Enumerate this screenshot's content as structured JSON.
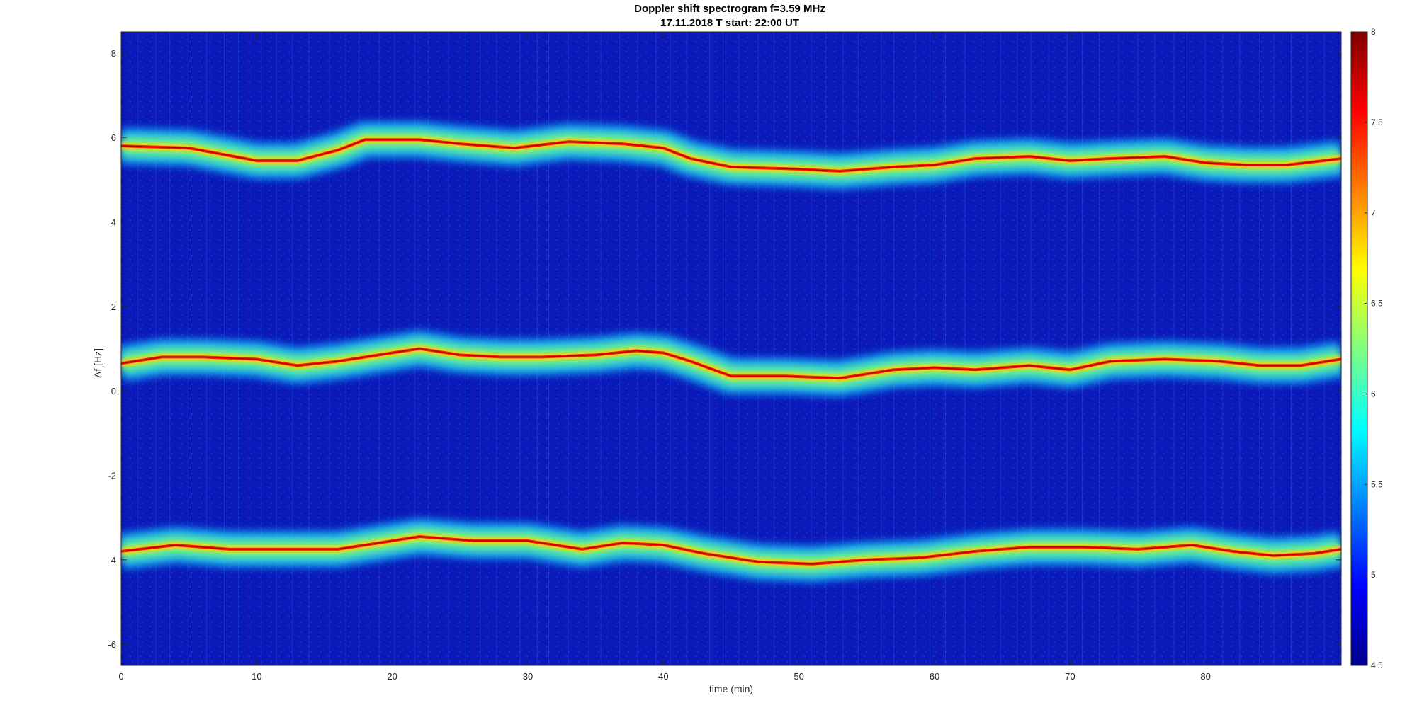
{
  "chart_data": {
    "type": "heatmap",
    "title": "Doppler shift spectrogram f=3.59 MHz",
    "subtitle": "17.11.2018   T start: 22:00 UT",
    "xlabel": "time (min)",
    "ylabel": "Δf [Hz]",
    "xlim": [
      0,
      90
    ],
    "ylim": [
      -6.5,
      8.5
    ],
    "xticks": [
      0,
      10,
      20,
      30,
      40,
      50,
      60,
      70,
      80
    ],
    "yticks": [
      -6,
      -4,
      -2,
      0,
      2,
      4,
      6,
      8
    ],
    "colorbar": {
      "colormap": "jet",
      "clim": [
        4.5,
        8
      ],
      "ticks": [
        4.5,
        5,
        5.5,
        6,
        6.5,
        7,
        7.5,
        8
      ],
      "tick_labels": [
        "4.5",
        "5",
        "5.5",
        "6",
        "6.5",
        "7",
        "7.5",
        "8"
      ]
    },
    "traces": [
      {
        "points": [
          [
            0,
            5.8
          ],
          [
            5,
            5.75
          ],
          [
            10,
            5.45
          ],
          [
            13,
            5.45
          ],
          [
            16,
            5.7
          ],
          [
            18,
            5.95
          ],
          [
            22,
            5.95
          ],
          [
            25,
            5.85
          ],
          [
            29,
            5.75
          ],
          [
            33,
            5.9
          ],
          [
            37,
            5.85
          ],
          [
            40,
            5.75
          ],
          [
            42,
            5.5
          ],
          [
            45,
            5.3
          ],
          [
            50,
            5.25
          ],
          [
            53,
            5.2
          ],
          [
            57,
            5.3
          ],
          [
            60,
            5.35
          ],
          [
            63,
            5.5
          ],
          [
            67,
            5.55
          ],
          [
            70,
            5.45
          ],
          [
            73,
            5.5
          ],
          [
            77,
            5.55
          ],
          [
            80,
            5.4
          ],
          [
            83,
            5.35
          ],
          [
            86,
            5.35
          ],
          [
            90,
            5.5
          ]
        ]
      },
      {
        "points": [
          [
            0,
            0.65
          ],
          [
            3,
            0.8
          ],
          [
            6,
            0.8
          ],
          [
            10,
            0.75
          ],
          [
            13,
            0.6
          ],
          [
            16,
            0.7
          ],
          [
            19,
            0.85
          ],
          [
            22,
            1.0
          ],
          [
            25,
            0.85
          ],
          [
            28,
            0.8
          ],
          [
            31,
            0.8
          ],
          [
            35,
            0.85
          ],
          [
            38,
            0.95
          ],
          [
            40,
            0.9
          ],
          [
            42,
            0.7
          ],
          [
            45,
            0.35
          ],
          [
            49,
            0.35
          ],
          [
            53,
            0.3
          ],
          [
            57,
            0.5
          ],
          [
            60,
            0.55
          ],
          [
            63,
            0.5
          ],
          [
            67,
            0.6
          ],
          [
            70,
            0.5
          ],
          [
            73,
            0.7
          ],
          [
            77,
            0.75
          ],
          [
            81,
            0.7
          ],
          [
            84,
            0.6
          ],
          [
            87,
            0.6
          ],
          [
            90,
            0.75
          ]
        ]
      },
      {
        "points": [
          [
            0,
            -3.8
          ],
          [
            4,
            -3.65
          ],
          [
            8,
            -3.75
          ],
          [
            12,
            -3.75
          ],
          [
            16,
            -3.75
          ],
          [
            19,
            -3.6
          ],
          [
            22,
            -3.45
          ],
          [
            26,
            -3.55
          ],
          [
            30,
            -3.55
          ],
          [
            34,
            -3.75
          ],
          [
            37,
            -3.6
          ],
          [
            40,
            -3.65
          ],
          [
            43,
            -3.85
          ],
          [
            47,
            -4.05
          ],
          [
            51,
            -4.1
          ],
          [
            55,
            -4.0
          ],
          [
            59,
            -3.95
          ],
          [
            63,
            -3.8
          ],
          [
            67,
            -3.7
          ],
          [
            71,
            -3.7
          ],
          [
            75,
            -3.75
          ],
          [
            79,
            -3.65
          ],
          [
            82,
            -3.8
          ],
          [
            85,
            -3.9
          ],
          [
            88,
            -3.85
          ],
          [
            90,
            -3.75
          ]
        ]
      }
    ],
    "background_level": 5.0
  }
}
